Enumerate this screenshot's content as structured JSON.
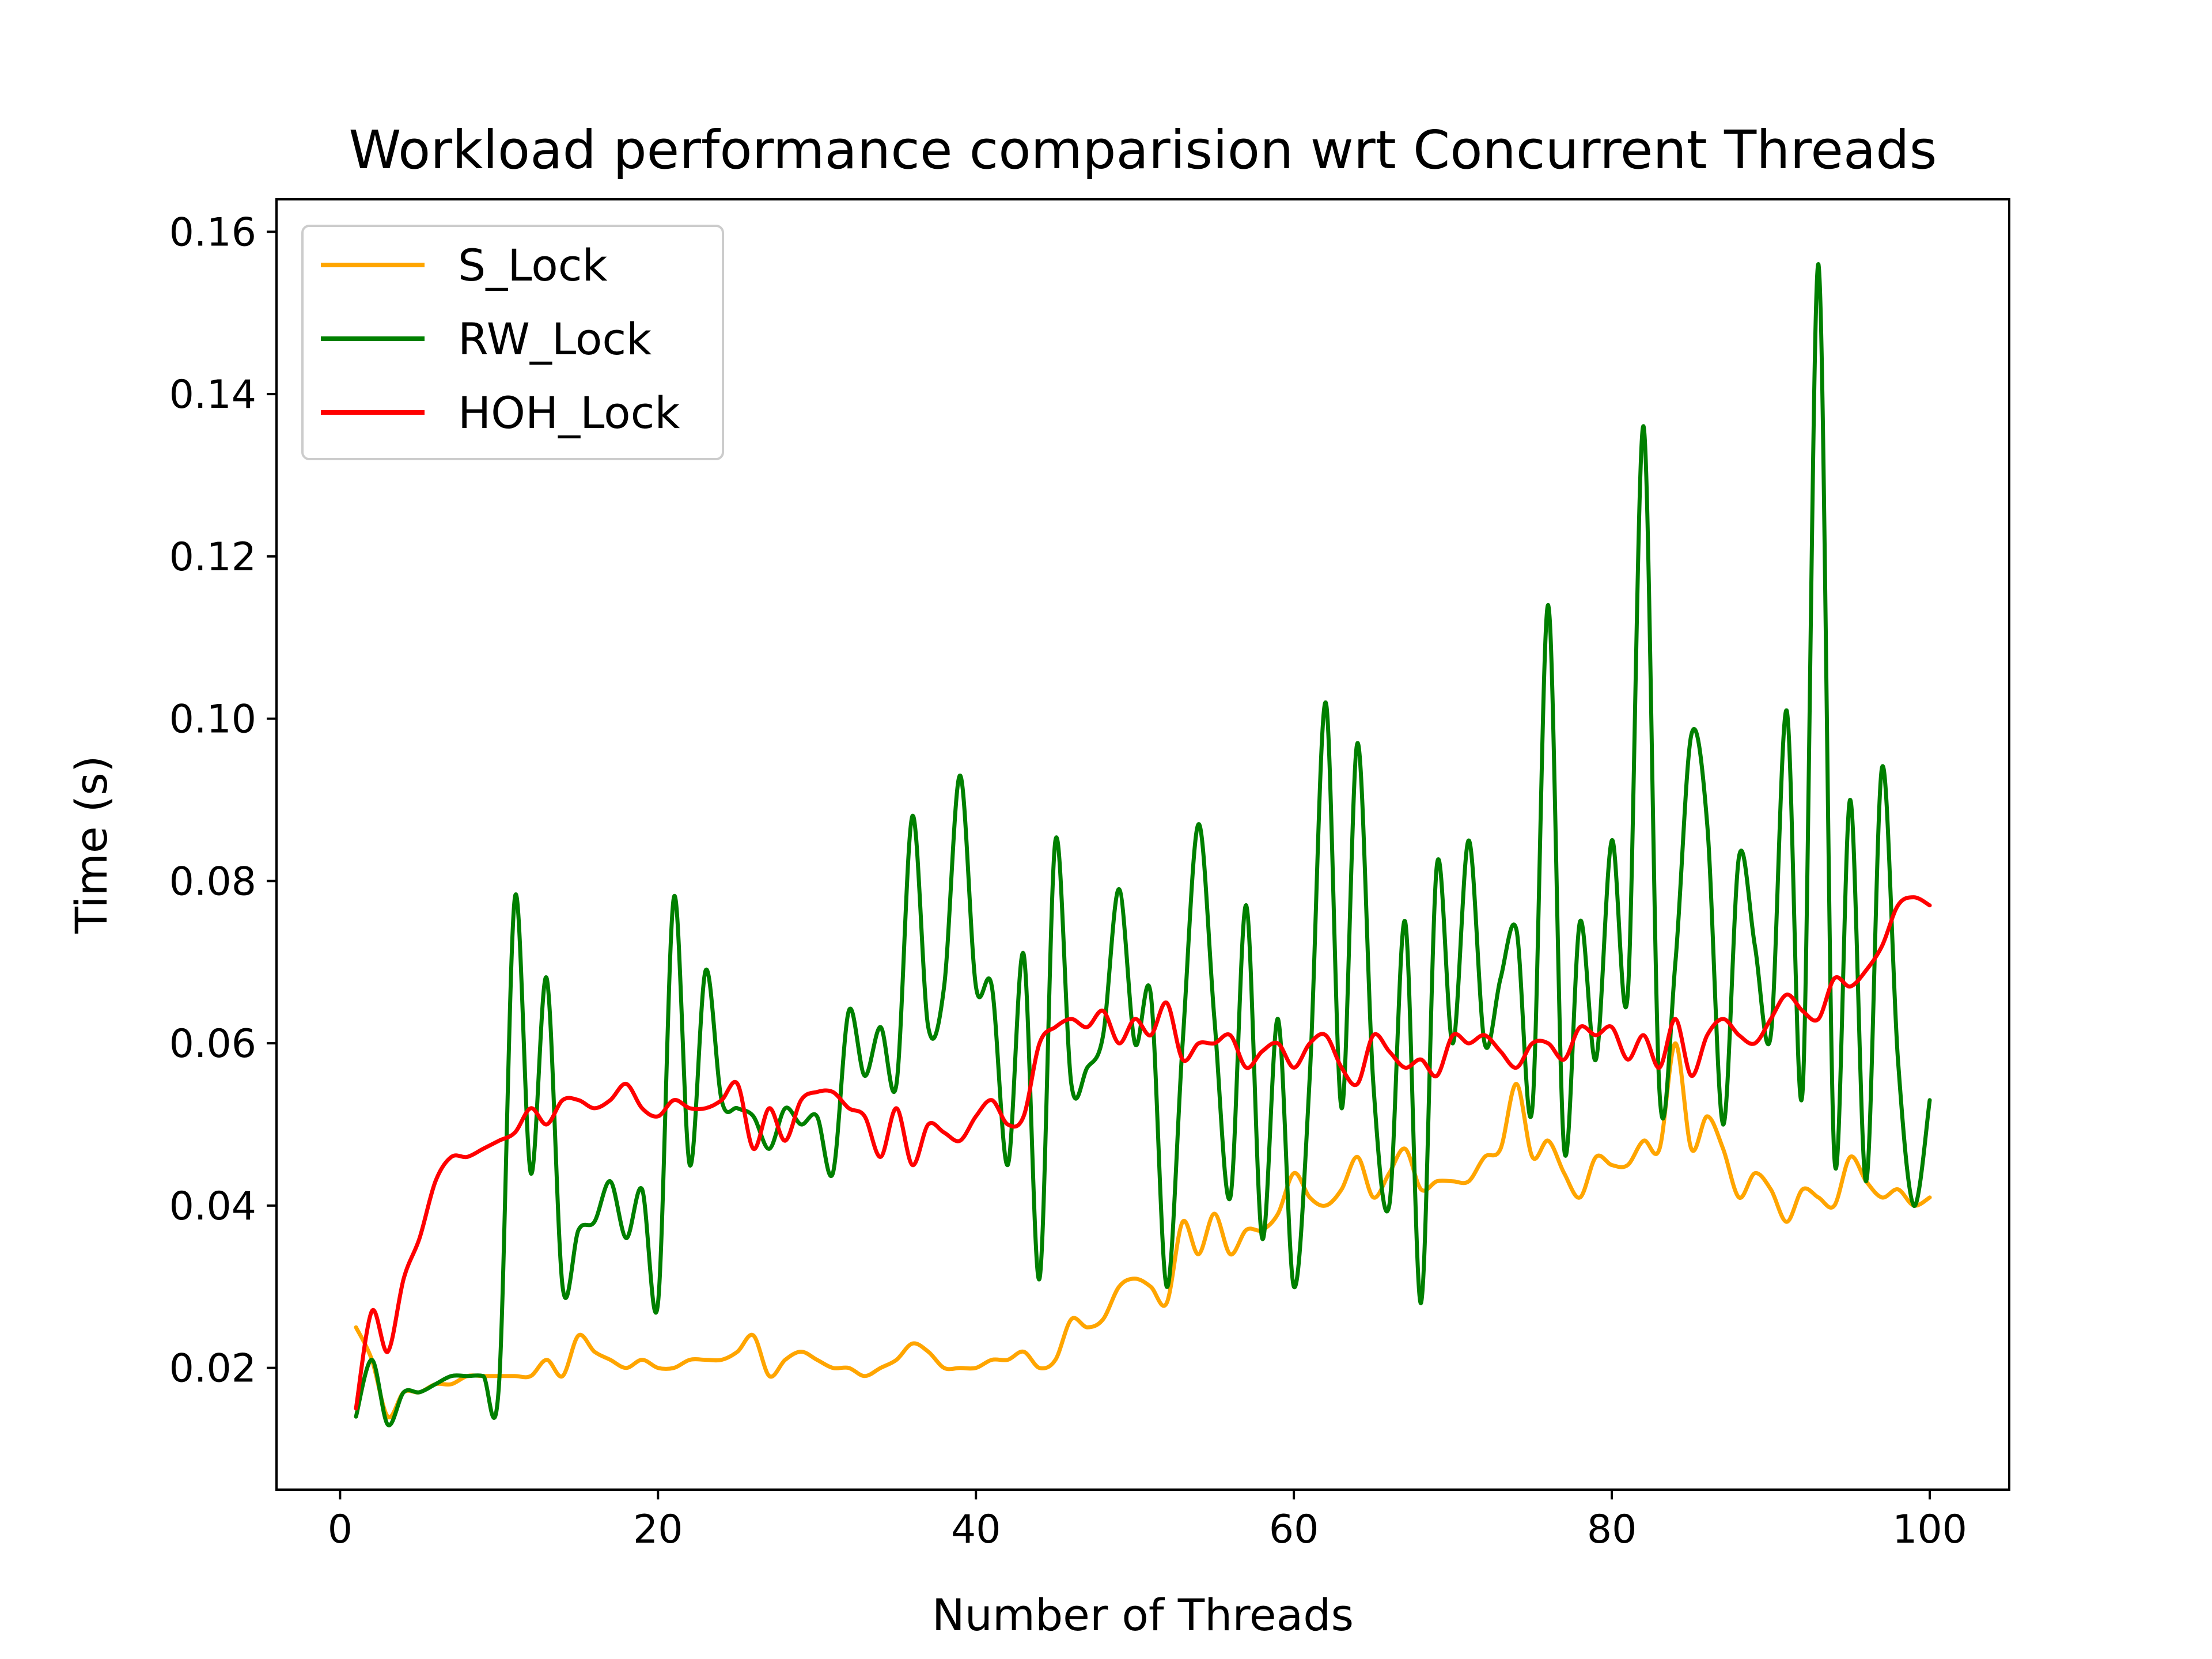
{
  "colors": {
    "S_Lock": "#ffa500",
    "RW_Lock": "#008000",
    "HOH_Lock": "#ff0000",
    "axis": "#000000",
    "legend_frame": "#cccccc"
  },
  "chart_data": {
    "type": "line",
    "title": "Workload performance comparision wrt Concurrent Threads",
    "xlabel": "Number of Threads",
    "ylabel": "Time (s)",
    "xlim": [
      -4,
      105
    ],
    "ylim": [
      0.005,
      0.164
    ],
    "xticks": [
      0,
      20,
      40,
      60,
      80,
      100
    ],
    "xtick_labels": [
      "0",
      "20",
      "40",
      "60",
      "80",
      "100"
    ],
    "yticks": [
      0.02,
      0.04,
      0.06,
      0.08,
      0.1,
      0.12,
      0.14,
      0.16
    ],
    "ytick_labels": [
      "0.02",
      "0.04",
      "0.06",
      "0.08",
      "0.10",
      "0.12",
      "0.14",
      "0.16"
    ],
    "grid": false,
    "legend_position": "upper left",
    "x": [
      1,
      2,
      3,
      4,
      5,
      6,
      7,
      8,
      9,
      10,
      11,
      12,
      13,
      14,
      15,
      16,
      17,
      18,
      19,
      20,
      21,
      22,
      23,
      24,
      25,
      26,
      27,
      28,
      29,
      30,
      31,
      32,
      33,
      34,
      35,
      36,
      37,
      38,
      39,
      40,
      41,
      42,
      43,
      44,
      45,
      46,
      47,
      48,
      49,
      50,
      51,
      52,
      53,
      54,
      55,
      56,
      57,
      58,
      59,
      60,
      61,
      62,
      63,
      64,
      65,
      66,
      67,
      68,
      69,
      70,
      71,
      72,
      73,
      74,
      75,
      76,
      77,
      78,
      79,
      80,
      81,
      82,
      83,
      84,
      85,
      86,
      87,
      88,
      89,
      90,
      91,
      92,
      93,
      94,
      95,
      96,
      97,
      98,
      99,
      100
    ],
    "series": [
      {
        "name": "S_Lock",
        "values": [
          0.025,
          0.021,
          0.014,
          0.017,
          0.017,
          0.018,
          0.018,
          0.019,
          0.019,
          0.019,
          0.019,
          0.019,
          0.021,
          0.019,
          0.024,
          0.022,
          0.021,
          0.02,
          0.021,
          0.02,
          0.02,
          0.021,
          0.021,
          0.021,
          0.022,
          0.024,
          0.019,
          0.021,
          0.022,
          0.021,
          0.02,
          0.02,
          0.019,
          0.02,
          0.021,
          0.023,
          0.022,
          0.02,
          0.02,
          0.02,
          0.021,
          0.021,
          0.022,
          0.02,
          0.021,
          0.026,
          0.025,
          0.026,
          0.03,
          0.031,
          0.03,
          0.028,
          0.038,
          0.034,
          0.039,
          0.034,
          0.037,
          0.037,
          0.039,
          0.044,
          0.041,
          0.04,
          0.042,
          0.046,
          0.041,
          0.044,
          0.047,
          0.042,
          0.043,
          0.043,
          0.043,
          0.046,
          0.047,
          0.055,
          0.046,
          0.048,
          0.044,
          0.041,
          0.046,
          0.045,
          0.045,
          0.048,
          0.047,
          0.06,
          0.047,
          0.051,
          0.047,
          0.041,
          0.044,
          0.042,
          0.038,
          0.042,
          0.041,
          0.04,
          0.046,
          0.043,
          0.041,
          0.042,
          0.04,
          0.041
        ]
      },
      {
        "name": "RW_Lock",
        "values": [
          0.014,
          0.021,
          0.013,
          0.017,
          0.017,
          0.018,
          0.019,
          0.019,
          0.019,
          0.018,
          0.078,
          0.044,
          0.068,
          0.03,
          0.037,
          0.038,
          0.043,
          0.036,
          0.042,
          0.028,
          0.078,
          0.045,
          0.069,
          0.053,
          0.052,
          0.051,
          0.047,
          0.052,
          0.05,
          0.051,
          0.044,
          0.064,
          0.056,
          0.062,
          0.055,
          0.088,
          0.062,
          0.067,
          0.093,
          0.067,
          0.067,
          0.045,
          0.071,
          0.031,
          0.085,
          0.055,
          0.057,
          0.061,
          0.079,
          0.06,
          0.066,
          0.03,
          0.06,
          0.087,
          0.063,
          0.041,
          0.077,
          0.036,
          0.063,
          0.03,
          0.056,
          0.102,
          0.052,
          0.097,
          0.055,
          0.04,
          0.075,
          0.028,
          0.082,
          0.06,
          0.085,
          0.06,
          0.068,
          0.074,
          0.052,
          0.114,
          0.047,
          0.075,
          0.058,
          0.085,
          0.066,
          0.136,
          0.054,
          0.07,
          0.098,
          0.087,
          0.05,
          0.083,
          0.072,
          0.061,
          0.101,
          0.054,
          0.156,
          0.046,
          0.09,
          0.043,
          0.094,
          0.058,
          0.04,
          0.053
        ]
      },
      {
        "name": "HOH_Lock",
        "values": [
          0.015,
          0.027,
          0.022,
          0.031,
          0.036,
          0.043,
          0.046,
          0.046,
          0.047,
          0.048,
          0.049,
          0.052,
          0.05,
          0.053,
          0.053,
          0.052,
          0.053,
          0.055,
          0.052,
          0.051,
          0.053,
          0.052,
          0.052,
          0.053,
          0.055,
          0.047,
          0.052,
          0.048,
          0.053,
          0.054,
          0.054,
          0.052,
          0.051,
          0.046,
          0.052,
          0.045,
          0.05,
          0.049,
          0.048,
          0.051,
          0.053,
          0.05,
          0.051,
          0.06,
          0.062,
          0.063,
          0.062,
          0.064,
          0.06,
          0.063,
          0.061,
          0.065,
          0.058,
          0.06,
          0.06,
          0.061,
          0.057,
          0.059,
          0.06,
          0.057,
          0.06,
          0.061,
          0.057,
          0.055,
          0.061,
          0.059,
          0.057,
          0.058,
          0.056,
          0.061,
          0.06,
          0.061,
          0.059,
          0.057,
          0.06,
          0.06,
          0.058,
          0.062,
          0.061,
          0.062,
          0.058,
          0.061,
          0.057,
          0.063,
          0.056,
          0.061,
          0.063,
          0.061,
          0.06,
          0.063,
          0.066,
          0.064,
          0.063,
          0.068,
          0.067,
          0.069,
          0.072,
          0.077,
          0.078,
          0.077
        ]
      }
    ]
  }
}
